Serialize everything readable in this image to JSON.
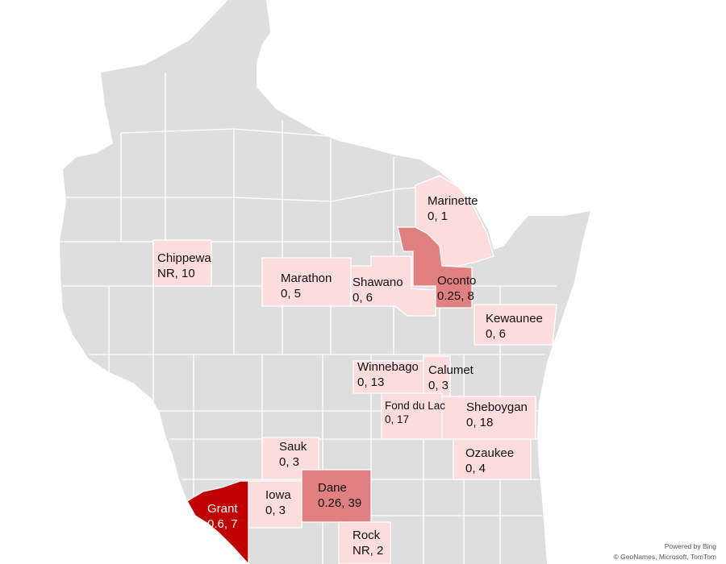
{
  "map": {
    "colors": {
      "land": "#dedede",
      "border": "#ffffff",
      "light": "#fcdcdc",
      "medium": "#e08080",
      "dark": "#c00000"
    },
    "counties": [
      {
        "name": "Marinette",
        "value": "0, 1",
        "shade": "light"
      },
      {
        "name": "Chippewa",
        "value": "NR, 10",
        "shade": "light"
      },
      {
        "name": "Marathon",
        "value": "0, 5",
        "shade": "light"
      },
      {
        "name": "Shawano",
        "value": "0, 6",
        "shade": "light"
      },
      {
        "name": "Oconto",
        "value": "0.25, 8",
        "shade": "medium"
      },
      {
        "name": "Kewaunee",
        "value": "0, 6",
        "shade": "light"
      },
      {
        "name": "Winnebago",
        "value": "0, 13",
        "shade": "light"
      },
      {
        "name": "Calumet",
        "value": "0, 3",
        "shade": "light"
      },
      {
        "name": "Fond du Lac",
        "value": "0, 17",
        "shade": "light"
      },
      {
        "name": "Sheboygan",
        "value": "0, 18",
        "shade": "light"
      },
      {
        "name": "Sauk",
        "value": "0, 3",
        "shade": "light"
      },
      {
        "name": "Ozaukee",
        "value": "0, 4",
        "shade": "light"
      },
      {
        "name": "Grant",
        "value": "0.6, 7",
        "shade": "dark"
      },
      {
        "name": "Iowa",
        "value": "0, 3",
        "shade": "light"
      },
      {
        "name": "Dane",
        "value": "0.26, 39",
        "shade": "medium"
      },
      {
        "name": "Rock",
        "value": "NR, 2",
        "shade": "light"
      }
    ]
  },
  "attribution": {
    "line1": "Powered by Bing",
    "line2": "© GeoNames, Microsoft, TomTom"
  }
}
